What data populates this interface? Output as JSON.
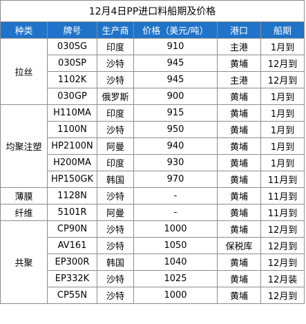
{
  "title": "12月4日PP进口料船期及价格",
  "headers": [
    "种类",
    "牌号",
    "生产商",
    "价格（美元/吨）",
    "港口",
    "船期"
  ],
  "groups": [
    {
      "category": "拉丝",
      "rows": [
        {
          "grade": "030SG",
          "producer": "印度",
          "price": "910",
          "port": "主港",
          "shipping": "1月到"
        },
        {
          "grade": "030SP",
          "producer": "沙特",
          "price": "945",
          "port": "黄埔",
          "shipping": "12月到"
        },
        {
          "grade": "1102K",
          "producer": "沙特",
          "price": "945",
          "port": "主港",
          "shipping": "12月到"
        },
        {
          "grade": "030GP",
          "producer": "俄罗斯",
          "price": "900",
          "port": "黄埔",
          "shipping": "1月到"
        }
      ]
    },
    {
      "category": "均聚注塑",
      "rows": [
        {
          "grade": "H110MA",
          "producer": "印度",
          "price": "915",
          "port": "黄埔",
          "shipping": "1月到"
        },
        {
          "grade": "1100N",
          "producer": "沙特",
          "price": "950",
          "port": "黄埔",
          "shipping": "1月到"
        },
        {
          "grade": "HP2100N",
          "producer": "阿曼",
          "price": "940",
          "port": "黄埔",
          "shipping": "1月到"
        },
        {
          "grade": "H200MA",
          "producer": "印度",
          "price": "930",
          "port": "黄埔",
          "shipping": "1月到"
        },
        {
          "grade": "HP150GK",
          "producer": "韩国",
          "price": "970",
          "port": "黄埔",
          "shipping": "11月到"
        }
      ]
    },
    {
      "category": "薄膜",
      "rows": [
        {
          "grade": "1128N",
          "producer": "沙特",
          "price": "-",
          "port": "黄埔",
          "shipping": "11月到"
        }
      ]
    },
    {
      "category": "纤维",
      "rows": [
        {
          "grade": "5101R",
          "producer": "阿曼",
          "price": "-",
          "port": "黄埔",
          "shipping": "11月到"
        }
      ]
    },
    {
      "category": "共聚",
      "rows": [
        {
          "grade": "CP90N",
          "producer": "沙特",
          "price": "1000",
          "port": "黄埔",
          "shipping": "12月到"
        },
        {
          "grade": "AV161",
          "producer": "沙特",
          "price": "1050",
          "port": "保税库",
          "shipping": "12月到"
        },
        {
          "grade": "EP300R",
          "producer": "韩国",
          "price": "1040",
          "port": "黄埔",
          "shipping": "12月到"
        },
        {
          "grade": "EP332K",
          "producer": "沙特",
          "price": "1025",
          "port": "黄埔",
          "shipping": "12月装"
        },
        {
          "grade": "CP55N",
          "producer": "沙特",
          "price": "1000",
          "port": "黄埔",
          "shipping": "12月到"
        }
      ]
    }
  ]
}
